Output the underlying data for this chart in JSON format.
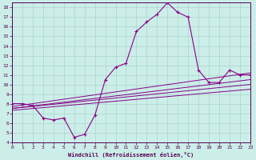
{
  "xlabel": "Windchill (Refroidissement éolien,°C)",
  "bg_color": "#cceee8",
  "grid_color": "#aad4cc",
  "line_color": "#880088",
  "xlim": [
    0,
    23
  ],
  "ylim": [
    4,
    18.5
  ],
  "xticks": [
    0,
    1,
    2,
    3,
    4,
    5,
    6,
    7,
    8,
    9,
    10,
    11,
    12,
    13,
    14,
    15,
    16,
    17,
    18,
    19,
    20,
    21,
    22,
    23
  ],
  "yticks": [
    4,
    5,
    6,
    7,
    8,
    9,
    10,
    11,
    12,
    13,
    14,
    15,
    16,
    17,
    18
  ],
  "series_main": {
    "x": [
      0,
      1,
      2,
      3,
      4,
      5,
      6,
      7,
      8,
      9,
      10,
      11,
      12,
      13,
      14,
      15,
      16,
      17,
      18,
      19,
      20,
      21,
      22,
      23
    ],
    "y": [
      8.0,
      8.0,
      7.8,
      6.5,
      6.3,
      6.5,
      4.5,
      4.8,
      6.8,
      10.5,
      11.8,
      12.2,
      15.5,
      16.5,
      17.3,
      18.5,
      17.5,
      17.0,
      11.5,
      10.2,
      10.2,
      11.5,
      11.0,
      11.0
    ]
  },
  "series_line1": {
    "x": [
      0,
      23
    ],
    "y": [
      7.7,
      11.2
    ]
  },
  "series_line2": {
    "x": [
      0,
      23
    ],
    "y": [
      7.5,
      10.5
    ]
  },
  "series_line3": {
    "x": [
      0,
      23
    ],
    "y": [
      7.5,
      10.0
    ]
  },
  "series_line4": {
    "x": [
      0,
      23
    ],
    "y": [
      7.3,
      9.5
    ]
  }
}
